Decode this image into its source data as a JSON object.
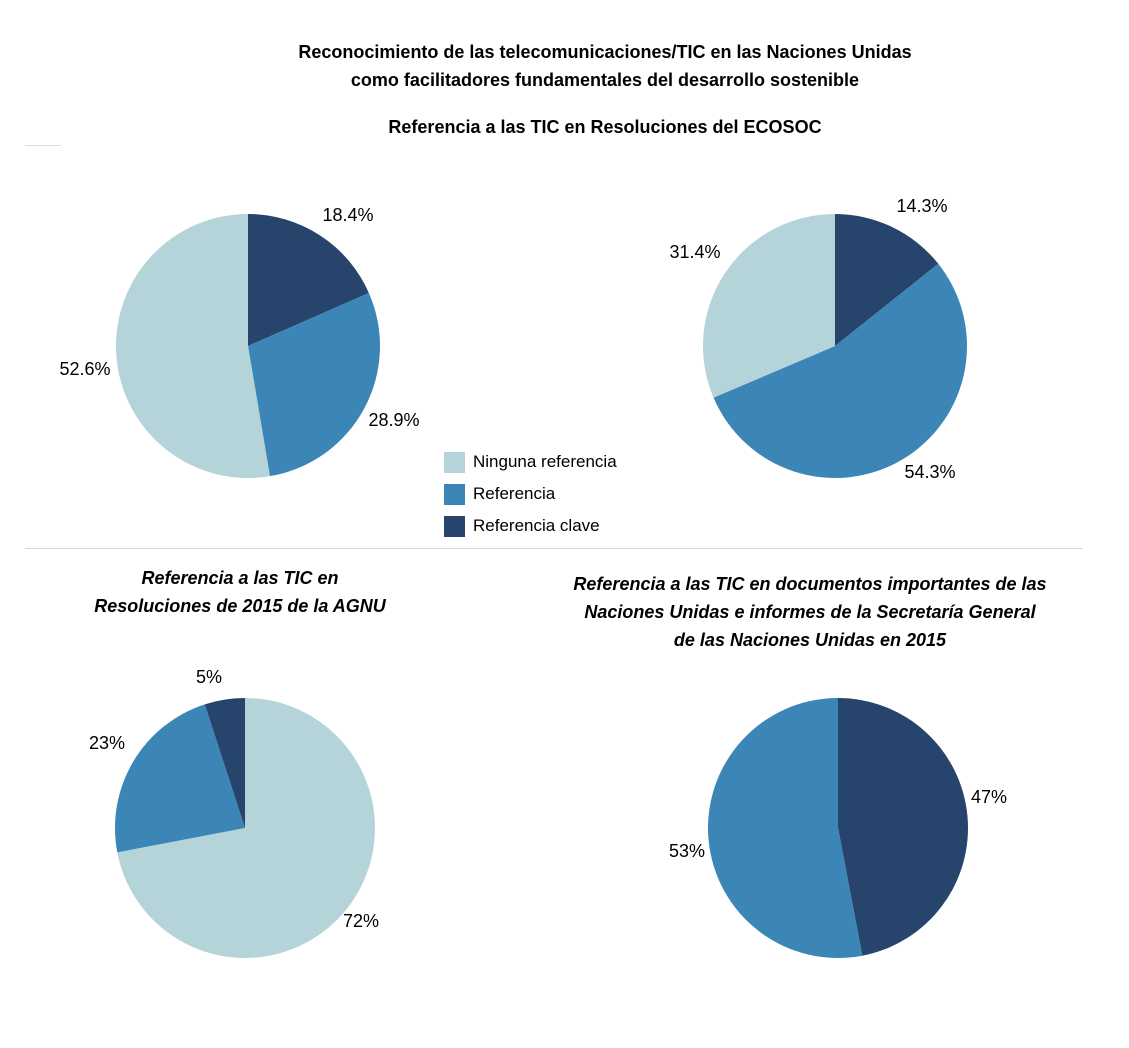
{
  "header": {
    "title_line1": "Reconocimiento de las telecomunicaciones/TIC en las Naciones Unidas",
    "title_line2": "como facilitadores fundamentales del desarrollo sostenible",
    "subtitle": "Referencia a las TIC en Resoluciones del ECOSOC"
  },
  "legend": {
    "items": [
      {
        "label": "Ninguna referencia",
        "color": "#b5d4da"
      },
      {
        "label": "Referencia",
        "color": "#3b86b6"
      },
      {
        "label": "Referencia clave",
        "color": "#26446c"
      }
    ]
  },
  "chart_data": [
    {
      "type": "pie",
      "title": "",
      "categories": [
        "Referencia clave",
        "Referencia",
        "Ninguna referencia"
      ],
      "values": [
        18.4,
        28.9,
        52.6
      ],
      "labels": [
        "18.4%",
        "28.9%",
        "52.6%"
      ],
      "colors": [
        "#26446c",
        "#3b86b6",
        "#b5d4da"
      ]
    },
    {
      "type": "pie",
      "title": "",
      "categories": [
        "Referencia clave",
        "Referencia",
        "Ninguna referencia"
      ],
      "values": [
        14.3,
        54.3,
        31.4
      ],
      "labels": [
        "14.3%",
        "54.3%",
        "31.4%"
      ],
      "colors": [
        "#26446c",
        "#3b86b6",
        "#b5d4da"
      ]
    },
    {
      "type": "pie",
      "title_line1": "Referencia a las TIC en",
      "title_line2": "Resoluciones de 2015 de la AGNU",
      "categories": [
        "Ninguna referencia",
        "Referencia",
        "Referencia clave"
      ],
      "values": [
        72,
        23,
        5
      ],
      "labels": [
        "72%",
        "23%",
        "5%"
      ],
      "colors": [
        "#b5d4da",
        "#3b86b6",
        "#26446c"
      ]
    },
    {
      "type": "pie",
      "title_line1": "Referencia a las TIC en documentos importantes de las",
      "title_line2": "Naciones Unidas e informes de la Secretaría General",
      "title_line3": "de las Naciones Unidas en 2015",
      "categories": [
        "Referencia clave",
        "Referencia"
      ],
      "values": [
        47,
        53
      ],
      "labels": [
        "47%",
        "53%"
      ],
      "colors": [
        "#26446c",
        "#3b86b6"
      ]
    }
  ]
}
